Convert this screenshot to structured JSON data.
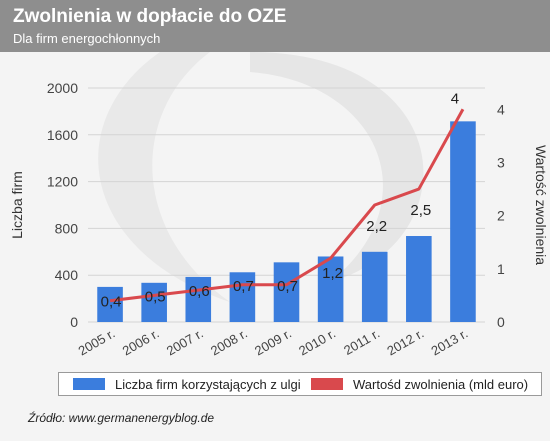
{
  "header": {
    "title": "Zwolnienia w dopłacie do OZE",
    "subtitle": "Dla firm energochłonnych"
  },
  "colors": {
    "header_bg": "#8e8e8e",
    "bar": "#3b7ddd",
    "line": "#d9494d"
  },
  "chart_data": {
    "type": "bar",
    "categories": [
      "2005 r.",
      "2006 r.",
      "2007 r.",
      "2008 r.",
      "2009 r.",
      "2010 r.",
      "2011 r.",
      "2012 r.",
      "2013 r."
    ],
    "series": [
      {
        "name": "Liczba firm korzystających z ulgi",
        "type": "bar",
        "axis": "left",
        "values": [
          300,
          335,
          385,
          425,
          510,
          560,
          600,
          735,
          1715
        ]
      },
      {
        "name": "Wartośd zwolnienia (mld euro)",
        "type": "line",
        "axis": "right",
        "values": [
          0.4,
          0.5,
          0.6,
          0.7,
          0.7,
          1.2,
          2.2,
          2.5,
          4
        ],
        "labels": [
          "0,4",
          "0,5",
          "0,6",
          "0,7",
          "0,7",
          "1,2",
          "2,2",
          "2,5",
          "4"
        ]
      }
    ],
    "ylabel": "Liczba firm",
    "y2label": "Wartość zwolnienia",
    "ylim": [
      0,
      2000
    ],
    "y2lim": [
      0,
      4.4
    ],
    "yticks": [
      "0",
      "400",
      "800",
      "1200",
      "1600",
      "2000"
    ],
    "y2ticks": [
      "0",
      "1",
      "2",
      "3",
      "4"
    ],
    "grid": true,
    "legend": "bottom"
  },
  "source": "Źródło: www.germanenergyblog.de"
}
